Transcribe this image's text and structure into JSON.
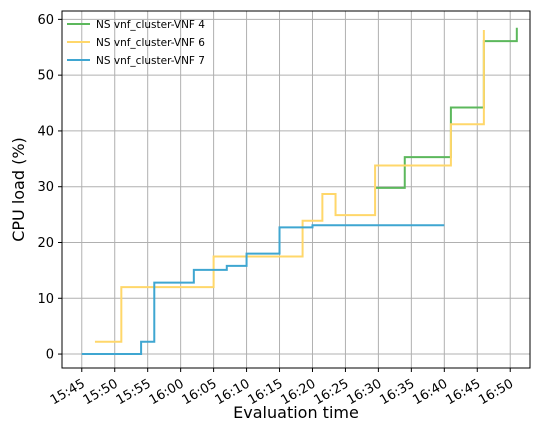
{
  "chart_data": {
    "type": "line",
    "xlabel": "Evaluation time",
    "ylabel": "CPU load (%)",
    "x_tick_labels": [
      "15:45",
      "15:50",
      "15:55",
      "16:00",
      "16:05",
      "16:10",
      "16:15",
      "16:20",
      "16:25",
      "16:30",
      "16:35",
      "16:40",
      "16:45",
      "16:50"
    ],
    "y_ticks": [
      0,
      10,
      20,
      30,
      40,
      50,
      60
    ],
    "xlim": [
      "15:42",
      "16:53"
    ],
    "ylim": [
      -2.5,
      61.5
    ],
    "grid": true,
    "legend_position": "top-left",
    "series": [
      {
        "name": "NS vnf_cluster-VNF 4",
        "color": "#5cb85c",
        "x": [
          "16:29.5",
          "16:34",
          "16:41",
          "16:46",
          "16:51"
        ],
        "y": [
          29.8,
          35.3,
          44.2,
          56.1,
          58.5
        ]
      },
      {
        "name": "NS vnf_cluster-VNF 6",
        "color": "#ffd76a",
        "x": [
          "15:47",
          "15:51",
          "16:05",
          "16:14",
          "16:18.5",
          "16:21.5",
          "16:23.5",
          "16:29.5",
          "16:41",
          "16:46"
        ],
        "y": [
          2.2,
          12.0,
          17.5,
          17.5,
          23.9,
          28.7,
          24.9,
          33.8,
          41.2,
          58.1
        ]
      },
      {
        "name": "NS vnf_cluster-VNF 7",
        "color": "#3fa6d1",
        "x": [
          "15:45",
          "15:54",
          "15:56",
          "16:02",
          "16:07",
          "16:10",
          "16:15",
          "16:20",
          "16:40"
        ],
        "y": [
          0,
          2.2,
          12.8,
          15.1,
          15.8,
          18.0,
          22.7,
          23.1,
          23.1
        ]
      }
    ]
  }
}
